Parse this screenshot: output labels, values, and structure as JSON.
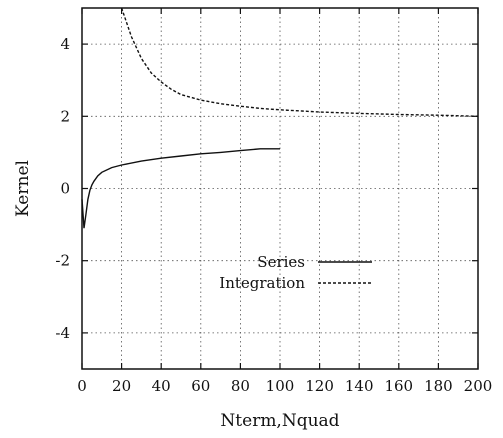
{
  "chart_data": {
    "type": "line",
    "xlabel": "Nterm,Nquad",
    "ylabel": "Kernel",
    "xlim": [
      0,
      200
    ],
    "ylim": [
      -5,
      5
    ],
    "x_ticks": [
      0,
      20,
      40,
      60,
      80,
      100,
      120,
      140,
      160,
      180,
      200
    ],
    "y_ticks": [
      -4,
      -2,
      0,
      2,
      4
    ],
    "grid": true,
    "legend_position": "center-right",
    "series": [
      {
        "name": "Series",
        "style": "solid",
        "x": [
          0,
          1,
          2,
          3,
          4,
          5,
          6,
          8,
          10,
          15,
          20,
          30,
          40,
          50,
          60,
          70,
          80,
          90,
          100
        ],
        "y": [
          -0.3,
          -1.1,
          -0.7,
          -0.3,
          -0.05,
          0.1,
          0.2,
          0.35,
          0.45,
          0.58,
          0.65,
          0.76,
          0.84,
          0.9,
          0.96,
          1.0,
          1.05,
          1.1,
          1.1
        ]
      },
      {
        "name": "Integration",
        "style": "dashed",
        "x": [
          20,
          25,
          30,
          35,
          40,
          45,
          50,
          60,
          70,
          80,
          90,
          100,
          110,
          120,
          140,
          160,
          180,
          200
        ],
        "y": [
          5.0,
          4.2,
          3.6,
          3.2,
          2.95,
          2.75,
          2.6,
          2.45,
          2.35,
          2.28,
          2.22,
          2.18,
          2.15,
          2.12,
          2.08,
          2.05,
          2.03,
          2.0
        ]
      }
    ]
  }
}
